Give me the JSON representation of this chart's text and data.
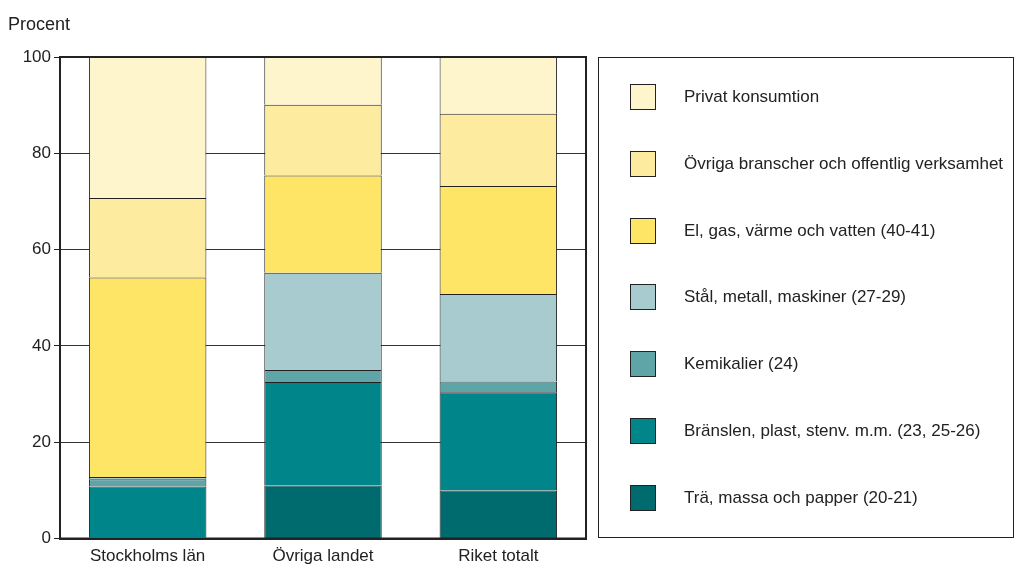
{
  "chart_data": {
    "type": "bar",
    "stacked": true,
    "ylabel": "Procent",
    "categories": [
      "Stockholms län",
      "Övriga landet",
      "Riket totalt"
    ],
    "series": [
      {
        "name": "Trä, massa och papper (20-21)",
        "color": "#006b6e",
        "values": [
          0.3,
          11.0,
          10.0
        ]
      },
      {
        "name": "Bränslen, plast, stenv. m.m. (23, 25-26)",
        "color": "#00868a",
        "values": [
          10.5,
          21.5,
          20.4
        ]
      },
      {
        "name": "Kemikalier (24)",
        "color": "#5fa5a8",
        "values": [
          1.5,
          2.5,
          2.2
        ]
      },
      {
        "name": "Stål, metall, maskiner (27-29)",
        "color": "#a8cbcf",
        "values": [
          0.5,
          20.2,
          18.2
        ]
      },
      {
        "name": "El, gas, värme och vatten (40-41)",
        "color": "#ffe566",
        "values": [
          41.4,
          20.2,
          22.4
        ]
      },
      {
        "name": "Övriga branscher och offentlig verksamhet",
        "color": "#fdeba0",
        "values": [
          16.5,
          14.7,
          15.0
        ]
      },
      {
        "name": "Privat konsumtion",
        "color": "#fef5cc",
        "values": [
          29.3,
          9.9,
          11.8
        ]
      }
    ],
    "ylim": [
      0,
      100
    ],
    "yticks": [
      0,
      20,
      40,
      60,
      80,
      100
    ],
    "grid": "y",
    "legend": "right"
  }
}
